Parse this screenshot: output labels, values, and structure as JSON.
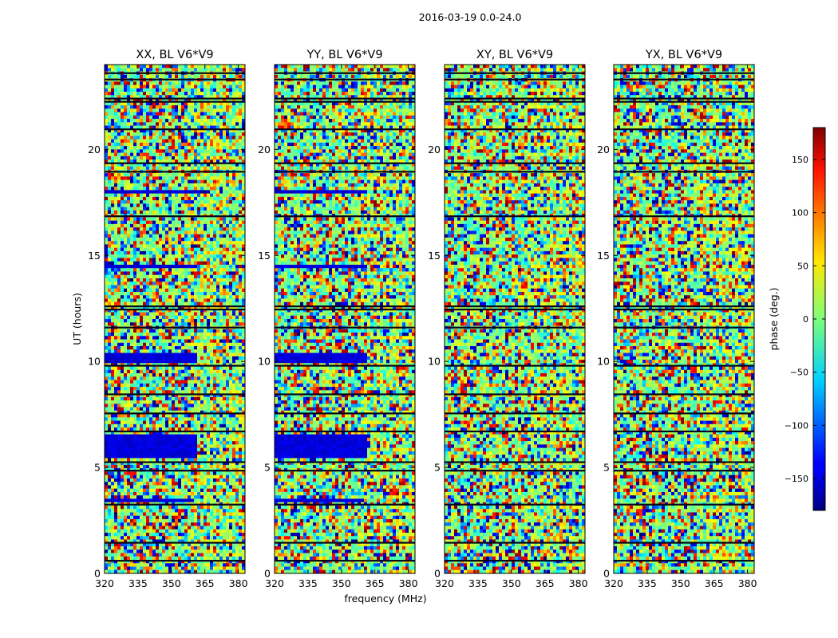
{
  "chart_data": {
    "type": "heatmap",
    "suptitle": "2016-03-19 0.0-24.0",
    "xlabel": "frequency (MHz)",
    "ylabel": "UT (hours)",
    "xlim": [
      320,
      383
    ],
    "ylim": [
      0,
      24
    ],
    "x_ticks": [
      320,
      335,
      350,
      365,
      380
    ],
    "y_ticks": [
      0,
      5,
      10,
      15,
      20
    ],
    "panels": [
      {
        "title": "XX, BL V6*V9"
      },
      {
        "title": "YY, BL V6*V9"
      },
      {
        "title": "XY, BL V6*V9"
      },
      {
        "title": "YX, BL V6*V9"
      }
    ],
    "colorbar": {
      "label": "phase (deg.)",
      "range": [
        -180,
        180
      ],
      "ticks": [
        150,
        100,
        50,
        0,
        -50,
        -100,
        -150
      ],
      "tick_labels": [
        "150",
        "100",
        "50",
        "0",
        "−50",
        "−100",
        "−150"
      ],
      "colormap": "jet"
    },
    "features": {
      "gap_hours": [
        0.6,
        1.45,
        3.25,
        4.85,
        5.25,
        6.7,
        7.55,
        8.45,
        9.8,
        11.6,
        12.45,
        12.6,
        16.85,
        18.95,
        19.35,
        20.95,
        22.25,
        22.4,
        23.3,
        23.6
      ],
      "blue_bands": [
        {
          "panel": 0,
          "from": 9.95,
          "to": 10.4,
          "fmax": 362
        },
        {
          "panel": 0,
          "from": 17.85,
          "to": 18.1,
          "fmax": 362
        },
        {
          "panel": 0,
          "from": 3.4,
          "to": 3.6,
          "fmax": 360
        },
        {
          "panel": 0,
          "from": 14.4,
          "to": 14.6,
          "fmax": 362
        },
        {
          "panel": 0,
          "from": 5.5,
          "to": 6.6,
          "fmax": 362
        },
        {
          "panel": 1,
          "from": 9.95,
          "to": 10.4,
          "fmax": 362
        },
        {
          "panel": 1,
          "from": 17.85,
          "to": 18.1,
          "fmax": 362
        },
        {
          "panel": 1,
          "from": 3.4,
          "to": 3.6,
          "fmax": 360
        },
        {
          "panel": 1,
          "from": 14.4,
          "to": 14.6,
          "fmax": 362
        },
        {
          "panel": 1,
          "from": 5.5,
          "to": 6.6,
          "fmax": 362
        }
      ]
    }
  }
}
